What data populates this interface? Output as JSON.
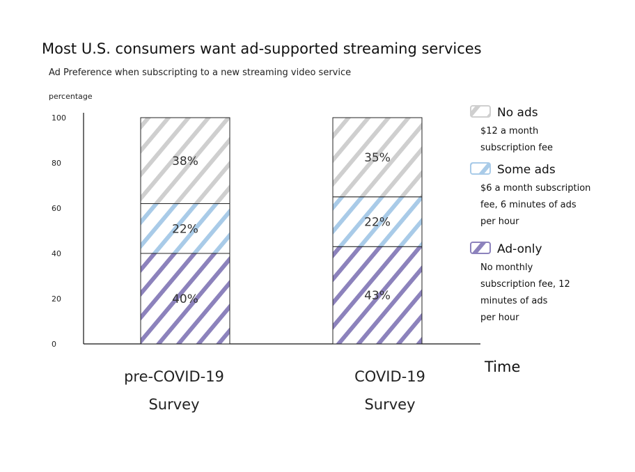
{
  "chart_data": {
    "type": "bar",
    "stacked": true,
    "title": "Most U.S. consumers want ad-supported streaming services",
    "subtitle": "Ad Preference when subscripting to a new streaming video service",
    "ylabel": "percentage",
    "xlabel": "Time",
    "ylim": [
      0,
      100
    ],
    "yticks": [
      0,
      20,
      40,
      60,
      80,
      100
    ],
    "grid": false,
    "legend_position": "right",
    "categories": [
      "pre-COVID-19 Survey",
      "COVID-19 Survey"
    ],
    "categories_lines": [
      [
        "pre-COVID-19",
        "Survey"
      ],
      [
        "COVID-19",
        "Survey"
      ]
    ],
    "series": [
      {
        "name": "Ad-only",
        "description_lines": [
          "No monthly",
          "subscription fee, 12",
          "minutes of ads",
          "per hour"
        ],
        "color": "#8c82bc",
        "values": [
          40,
          43
        ],
        "labels": [
          "40%",
          "43%"
        ]
      },
      {
        "name": "Some ads",
        "description_lines": [
          "$6 a month subscription",
          "fee, 6 minutes of ads",
          "per hour"
        ],
        "color": "#a9cbe8",
        "values": [
          22,
          22
        ],
        "labels": [
          "22%",
          "22%"
        ]
      },
      {
        "name": "No ads",
        "description_lines": [
          "$12 a month",
          "subscription fee"
        ],
        "color": "#cfcfcf",
        "values": [
          38,
          35
        ],
        "labels": [
          "38%",
          "35%"
        ]
      }
    ]
  }
}
